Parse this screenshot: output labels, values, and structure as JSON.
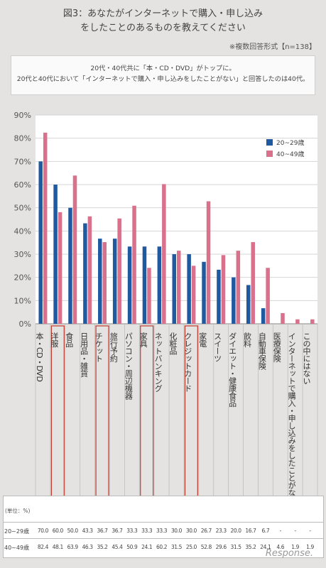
{
  "title": {
    "line1": "図3：あなたがインターネットで購入・申し込み",
    "line2": "をしたことのあるものを教えてください"
  },
  "note": "※複数回答形式【n=138】",
  "summary": {
    "line1": "20代・40代共に「本・CD・DVD」がトップに。",
    "line2": "20代と40代において「インターネットで購入・申し込みをしたことがない」と回答したのは40代。"
  },
  "watermark": "Response.",
  "colors": {
    "series1": "#1f5aa0",
    "series2": "#d9708c",
    "highlight": "#c0392b"
  },
  "chart_data": {
    "type": "bar",
    "title": "",
    "xlabel": "",
    "ylabel": "",
    "ylim": [
      0,
      90
    ],
    "yticks": [
      "0%",
      "10%",
      "20%",
      "30%",
      "40%",
      "50%",
      "60%",
      "70%",
      "80%",
      "90%"
    ],
    "grid": true,
    "legend_position": "top-right",
    "categories": [
      "本・CD・DVD",
      "洋服",
      "食品",
      "日用品・雑貨",
      "チケット",
      "旅行予約",
      "パソコン・周辺機器",
      "家具",
      "ネットバンキング",
      "化粧品",
      "クレジットカード",
      "家電",
      "スイーツ",
      "ダイエット・健康食品",
      "飲料",
      "自動車保険",
      "医療保険",
      "インターネットで購入・申し込みをしたことがない",
      "この中にはない"
    ],
    "highlighted": [
      1,
      4,
      7,
      10
    ],
    "series": [
      {
        "name": "20~29歳",
        "values": [
          70.0,
          60.0,
          50.0,
          43.3,
          36.7,
          36.7,
          33.3,
          33.3,
          33.3,
          30.0,
          30.0,
          26.7,
          23.3,
          20.0,
          16.7,
          6.7,
          null,
          null,
          null
        ],
        "labels": [
          "70.0",
          "60.0",
          "50.0",
          "43.3",
          "36.7",
          "36.7",
          "33.3",
          "33.3",
          "33.3",
          "30.0",
          "30.0",
          "26.7",
          "23.3",
          "20.0",
          "16.7",
          "6.7",
          "-",
          "-",
          "-"
        ]
      },
      {
        "name": "40~49歳",
        "values": [
          82.4,
          48.1,
          63.9,
          46.3,
          35.2,
          45.4,
          50.9,
          24.1,
          60.2,
          31.5,
          25.0,
          52.8,
          29.6,
          31.5,
          35.2,
          24.1,
          4.6,
          1.9,
          1.9
        ],
        "labels": [
          "82.4",
          "48.1",
          "63.9",
          "46.3",
          "35.2",
          "45.4",
          "50.9",
          "24.1",
          "60.2",
          "31.5",
          "25.0",
          "52.8",
          "29.6",
          "31.5",
          "35.2",
          "24.1",
          "4.6",
          "1.9",
          "1.9"
        ]
      }
    ],
    "unit_label": "(単位：%)"
  }
}
